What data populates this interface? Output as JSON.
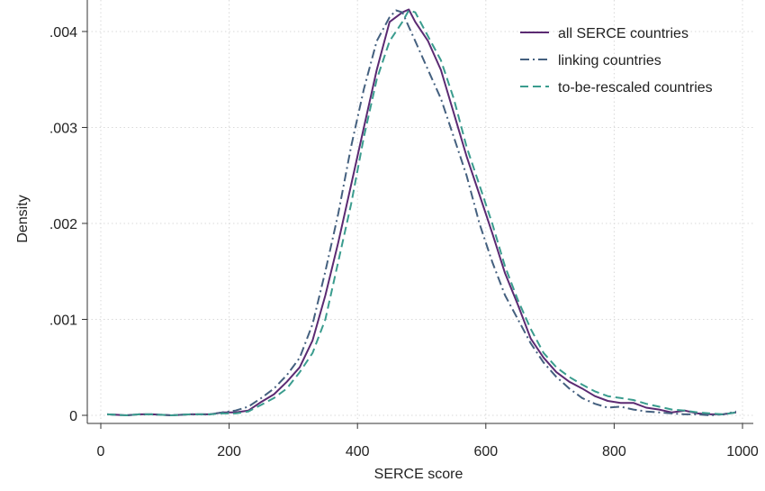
{
  "chart_data": {
    "type": "line",
    "title": "",
    "xlabel": "SERCE score",
    "ylabel": "Density",
    "xlim": [
      0,
      1000
    ],
    "ylim": [
      0,
      0.0043
    ],
    "xticks": [
      0,
      200,
      400,
      600,
      800,
      1000
    ],
    "xtick_labels": [
      "0",
      "200",
      "400",
      "600",
      "800",
      "1000"
    ],
    "yticks": [
      0,
      0.001,
      0.002,
      0.003,
      0.004
    ],
    "ytick_labels": [
      "0",
      ".001",
      ".002",
      ".003",
      ".004"
    ],
    "grid": true,
    "legend_position": "top-right",
    "series": [
      {
        "name": "all SERCE countries",
        "color": "#5b2a72",
        "dash": "solid",
        "x": [
          10,
          40,
          60,
          80,
          110,
          140,
          170,
          190,
          210,
          230,
          250,
          270,
          290,
          310,
          330,
          350,
          370,
          390,
          410,
          430,
          450,
          470,
          480,
          490,
          510,
          530,
          550,
          570,
          590,
          610,
          630,
          650,
          670,
          690,
          710,
          730,
          750,
          770,
          790,
          810,
          830,
          850,
          870,
          890,
          910,
          930,
          950,
          970,
          990
        ],
        "y": [
          1e-05,
          0.0,
          1e-05,
          1e-05,
          0.0,
          1e-05,
          1e-05,
          3e-05,
          3e-05,
          5e-05,
          0.00014,
          0.00022,
          0.00035,
          0.0005,
          0.00078,
          0.00125,
          0.0018,
          0.0024,
          0.003,
          0.0036,
          0.0041,
          0.0042,
          0.00423,
          0.0041,
          0.0039,
          0.0036,
          0.00315,
          0.0027,
          0.0023,
          0.0019,
          0.00148,
          0.00115,
          0.0008,
          0.0006,
          0.00045,
          0.00035,
          0.00028,
          0.0002,
          0.00015,
          0.00013,
          0.00013,
          8e-05,
          6e-05,
          3e-05,
          5e-05,
          2e-05,
          1e-05,
          1e-05,
          3e-05
        ]
      },
      {
        "name": "linking countries",
        "color": "#44607f",
        "dash": "dashdot",
        "x": [
          10,
          40,
          60,
          80,
          110,
          140,
          170,
          190,
          210,
          230,
          250,
          270,
          290,
          310,
          330,
          350,
          370,
          390,
          410,
          430,
          450,
          460,
          470,
          480,
          490,
          510,
          530,
          550,
          570,
          590,
          610,
          630,
          650,
          670,
          690,
          710,
          730,
          750,
          770,
          790,
          810,
          830,
          850,
          870,
          890,
          910,
          930,
          950,
          970,
          990
        ],
        "y": [
          1e-05,
          0.0,
          1e-05,
          1e-05,
          0.0,
          1e-05,
          1e-05,
          3e-05,
          5e-05,
          9e-05,
          0.00018,
          0.00028,
          0.00042,
          0.0006,
          0.00095,
          0.0015,
          0.0021,
          0.0028,
          0.0034,
          0.0039,
          0.00415,
          0.00422,
          0.0042,
          0.00405,
          0.0039,
          0.0036,
          0.0033,
          0.0029,
          0.0025,
          0.002,
          0.0016,
          0.00125,
          0.001,
          0.00075,
          0.00055,
          0.0004,
          0.00028,
          0.00018,
          0.00012,
          8e-05,
          9e-05,
          6e-05,
          4e-05,
          3e-05,
          2e-05,
          1e-05,
          1e-05,
          0.0,
          1e-05,
          4e-05
        ]
      },
      {
        "name": "to-be-rescaled countries",
        "color": "#3a9c8e",
        "dash": "dashed",
        "x": [
          10,
          40,
          60,
          80,
          110,
          140,
          170,
          190,
          210,
          230,
          250,
          270,
          290,
          310,
          330,
          350,
          370,
          390,
          410,
          430,
          450,
          470,
          480,
          490,
          510,
          530,
          550,
          570,
          590,
          610,
          630,
          650,
          670,
          690,
          710,
          730,
          750,
          770,
          790,
          810,
          830,
          850,
          870,
          890,
          910,
          930,
          950,
          970,
          990
        ],
        "y": [
          1e-05,
          0.0,
          1e-05,
          1e-05,
          0.0,
          1e-05,
          1e-05,
          2e-05,
          2e-05,
          4e-05,
          0.00011,
          0.00018,
          0.00028,
          0.00045,
          0.00065,
          0.001,
          0.0016,
          0.0022,
          0.0029,
          0.0035,
          0.0039,
          0.0041,
          0.00422,
          0.0042,
          0.00395,
          0.0037,
          0.0033,
          0.0028,
          0.0024,
          0.002,
          0.00155,
          0.0012,
          0.0009,
          0.00065,
          0.0005,
          0.0004,
          0.00032,
          0.00025,
          0.0002,
          0.00018,
          0.00016,
          0.00012,
          9e-05,
          6e-05,
          5e-05,
          3e-05,
          2e-05,
          1e-05,
          3e-05
        ]
      }
    ]
  }
}
